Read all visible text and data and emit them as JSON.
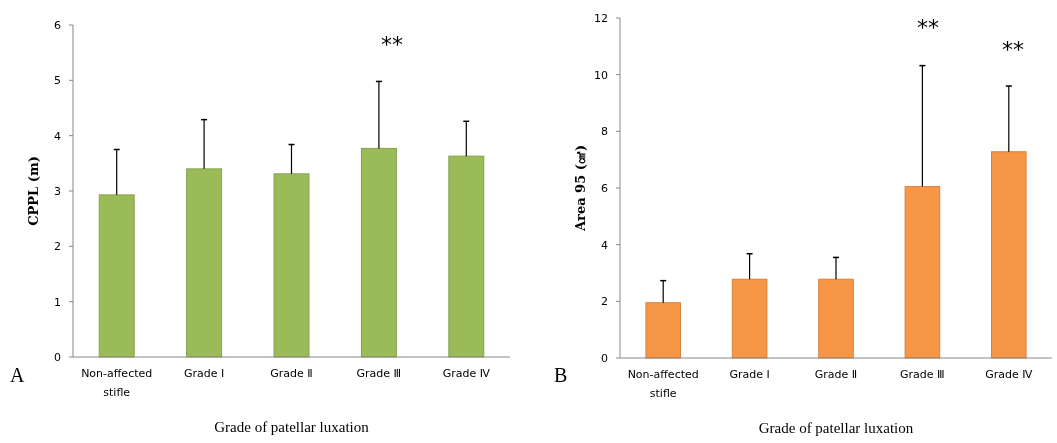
{
  "chart_data": [
    {
      "type": "bar",
      "ylabel": "CPPL (m)",
      "xlabel": "Grade of patellar luxation",
      "categories": [
        "Non-affected stifle",
        "Grade Ⅰ",
        "Grade Ⅱ",
        "Grade Ⅲ",
        "Grade Ⅳ"
      ],
      "values": [
        2.93,
        3.4,
        3.31,
        3.77,
        3.63
      ],
      "errors": [
        [
          2.93,
          3.75
        ],
        [
          3.4,
          4.29
        ],
        [
          3.31,
          3.84
        ],
        [
          3.77,
          4.98
        ],
        [
          3.63,
          4.26
        ]
      ],
      "color": "#9bbb59",
      "ylim": [
        0,
        6
      ],
      "yticks": [
        0,
        1,
        2,
        3,
        4,
        5,
        6
      ],
      "grid": false,
      "annotations": [
        "A",
        "**"
      ]
    },
    {
      "type": "bar",
      "ylabel": "Area 95 (㎠)",
      "xlabel": "Grade of patellar luxation",
      "categories": [
        "Non-affected stifle",
        "Grade Ⅰ",
        "Grade Ⅱ",
        "Grade Ⅲ",
        "Grade Ⅳ"
      ],
      "values": [
        1.95,
        2.78,
        2.78,
        6.05,
        7.28
      ],
      "errors": [
        [
          1.95,
          2.73
        ],
        [
          2.78,
          3.68
        ],
        [
          2.78,
          3.55
        ],
        [
          6.05,
          10.32
        ],
        [
          7.28,
          9.6
        ]
      ],
      "color": "#f79646",
      "ylim": [
        0,
        12
      ],
      "yticks": [
        0,
        2,
        4,
        6,
        8,
        10,
        12
      ],
      "grid": false,
      "annotations": [
        "B",
        "**",
        "**"
      ]
    }
  ]
}
